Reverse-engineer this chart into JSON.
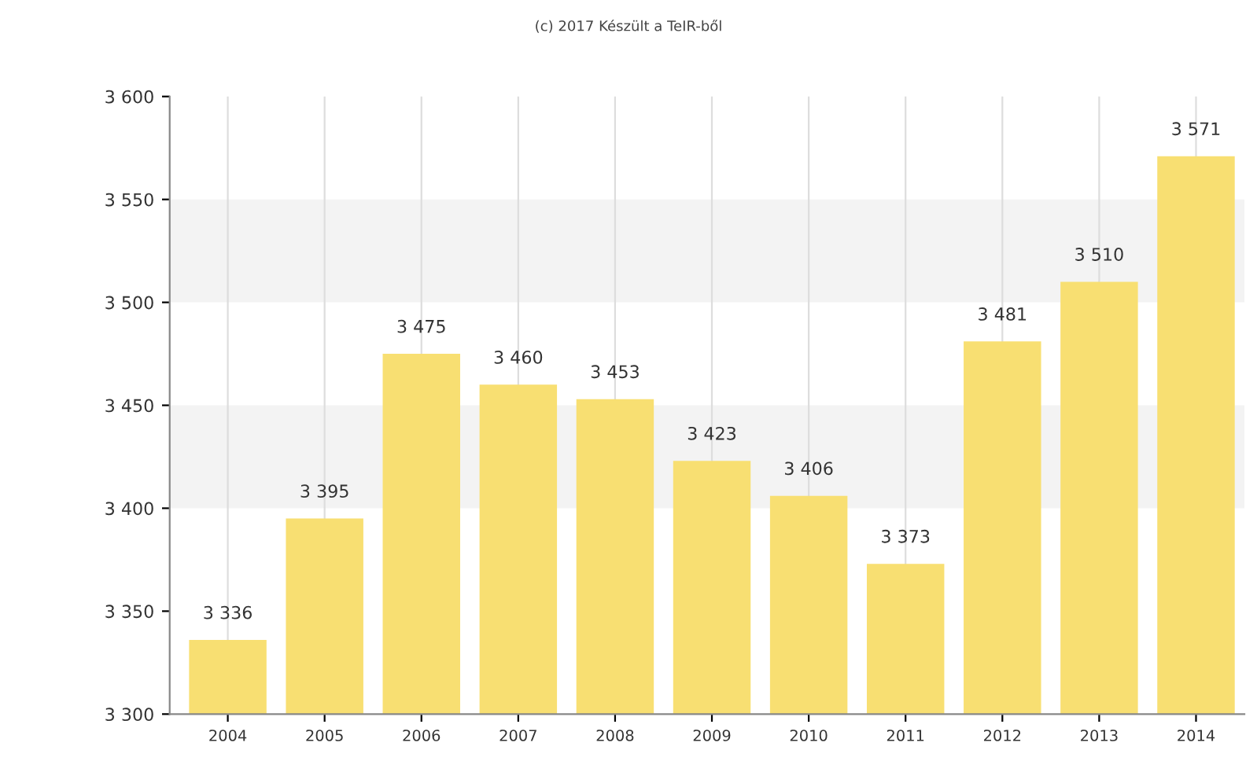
{
  "chart_data": {
    "type": "bar",
    "title": "(c) 2017 Készült a TeIR-ből",
    "categories": [
      "2004",
      "2005",
      "2006",
      "2007",
      "2008",
      "2009",
      "2010",
      "2011",
      "2012",
      "2013",
      "2014"
    ],
    "values": [
      3336,
      3395,
      3475,
      3460,
      3453,
      3423,
      3406,
      3373,
      3481,
      3510,
      3571
    ],
    "value_labels": [
      "3 336",
      "3 395",
      "3 475",
      "3 460",
      "3 453",
      "3 423",
      "3 406",
      "3 373",
      "3 481",
      "3 510",
      "3 571"
    ],
    "color": "#f8df72",
    "ylim": [
      3300,
      3600
    ],
    "yticks": [
      {
        "value": 3300,
        "label": "3 300"
      },
      {
        "value": 3350,
        "label": "3 350"
      },
      {
        "value": 3400,
        "label": "3 400"
      },
      {
        "value": 3450,
        "label": "3 450"
      },
      {
        "value": 3500,
        "label": "3 500"
      },
      {
        "value": 3550,
        "label": "3 550"
      },
      {
        "value": 3600,
        "label": "3 600"
      }
    ],
    "bands": [
      {
        "axis": "y",
        "from": 3400,
        "to": 3450,
        "color": "#f3f3f3"
      },
      {
        "axis": "y",
        "from": 3500,
        "to": 3550,
        "color": "#f3f3f3"
      }
    ],
    "grid": "x"
  }
}
